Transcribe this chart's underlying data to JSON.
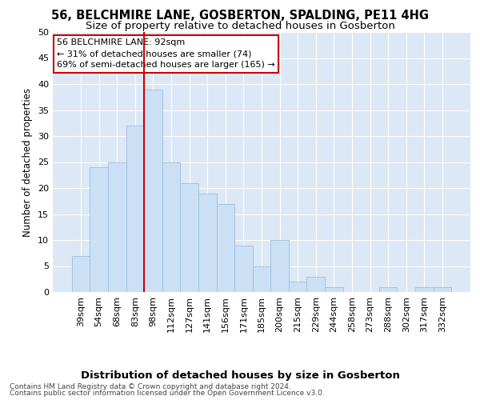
{
  "title": "56, BELCHMIRE LANE, GOSBERTON, SPALDING, PE11 4HG",
  "subtitle": "Size of property relative to detached houses in Gosberton",
  "xlabel": "Distribution of detached houses by size in Gosberton",
  "ylabel": "Number of detached properties",
  "categories": [
    "39sqm",
    "54sqm",
    "68sqm",
    "83sqm",
    "98sqm",
    "112sqm",
    "127sqm",
    "141sqm",
    "156sqm",
    "171sqm",
    "185sqm",
    "200sqm",
    "215sqm",
    "229sqm",
    "244sqm",
    "258sqm",
    "273sqm",
    "288sqm",
    "302sqm",
    "317sqm",
    "332sqm"
  ],
  "values": [
    7,
    24,
    25,
    32,
    39,
    25,
    21,
    19,
    17,
    9,
    5,
    10,
    2,
    3,
    1,
    0,
    0,
    1,
    0,
    1,
    1
  ],
  "bar_color": "#cce0f5",
  "bar_edge_color": "#9bbedd",
  "vline_index": 4,
  "vline_color": "#cc0000",
  "annotation_text": "56 BELCHMIRE LANE: 92sqm\n← 31% of detached houses are smaller (74)\n69% of semi-detached houses are larger (165) →",
  "annotation_box_color": "#ffffff",
  "annotation_box_edge": "#cc0000",
  "ylim": [
    0,
    50
  ],
  "yticks": [
    0,
    5,
    10,
    15,
    20,
    25,
    30,
    35,
    40,
    45,
    50
  ],
  "fig_bg_color": "#ffffff",
  "plot_bg_color": "#dce8f5",
  "grid_color": "#ffffff",
  "footer_line1": "Contains HM Land Registry data © Crown copyright and database right 2024.",
  "footer_line2": "Contains public sector information licensed under the Open Government Licence v3.0.",
  "title_fontsize": 10.5,
  "subtitle_fontsize": 9.5,
  "xlabel_fontsize": 9.5,
  "ylabel_fontsize": 8.5,
  "tick_fontsize": 8,
  "annot_fontsize": 8,
  "footer_fontsize": 6.5
}
